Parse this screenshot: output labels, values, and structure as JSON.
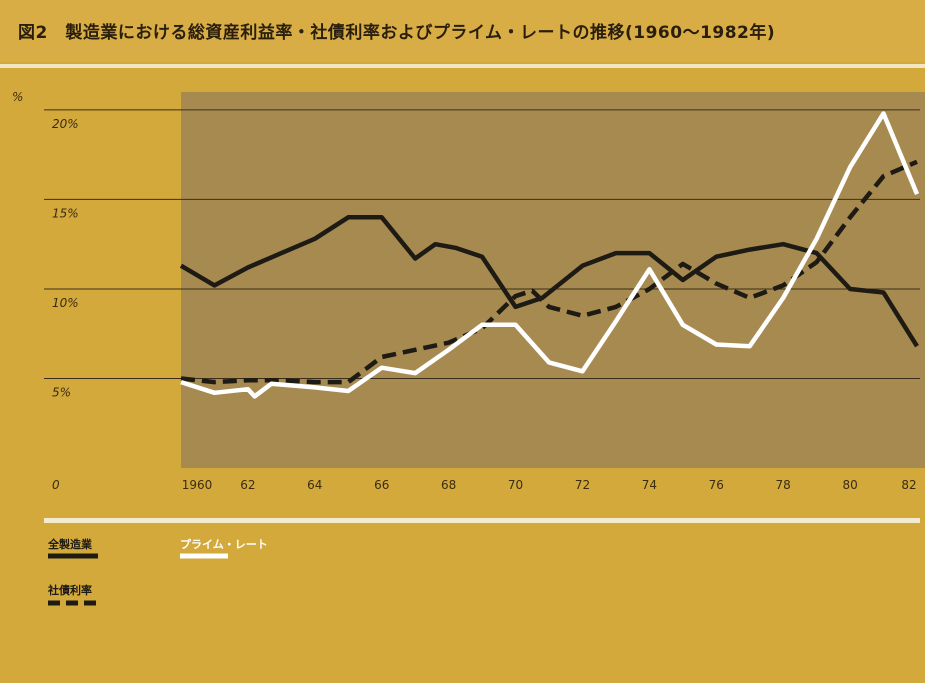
{
  "title": "図2　製造業における総資産利益率・社債利率およびプライム・レートの推移(1960〜1982年)",
  "colors": {
    "background": "#d4a93c",
    "plot_area": "#a78a4f",
    "manufacturing_line": "#1e1a14",
    "bond_line": "#1e1a14",
    "prime_line": "#ffffff",
    "grid": "#3a2e1a"
  },
  "legend": {
    "manufacturing": "全製造業",
    "bond": "社債利率",
    "prime": "プライム・レート"
  },
  "chart_data": {
    "type": "line",
    "title": "図2　製造業における総資産利益率・社債利率およびプライム・レートの推移(1960〜1982年)",
    "y_unit": "%",
    "ylim": [
      0,
      21
    ],
    "yticks": [
      0,
      5,
      10,
      15,
      20
    ],
    "ytick_labels": [
      "0",
      "5%",
      "10%",
      "15%",
      "20%"
    ],
    "xlim": [
      1960,
      1982
    ],
    "xticks": [
      1960,
      1962,
      1964,
      1966,
      1968,
      1970,
      1972,
      1974,
      1976,
      1978,
      1980,
      1982
    ],
    "xtick_labels": [
      "1960",
      "62",
      "64",
      "66",
      "68",
      "70",
      "72",
      "74",
      "76",
      "78",
      "80",
      "82"
    ],
    "grid": true,
    "legend_position": "bottom-left",
    "series": [
      {
        "name": "全製造業",
        "style": "solid-black",
        "x": [
          1960,
          1961,
          1962,
          1963,
          1964,
          1965,
          1966,
          1967,
          1967.6,
          1968.2,
          1969,
          1970,
          1970.8,
          1972,
          1973,
          1974,
          1975,
          1976,
          1977,
          1978,
          1979,
          1980,
          1981,
          1982
        ],
        "values": [
          11.3,
          10.2,
          11.2,
          12.0,
          12.8,
          14.0,
          14.0,
          11.7,
          12.5,
          12.3,
          11.8,
          9.0,
          9.5,
          11.3,
          12.0,
          12.0,
          10.5,
          11.8,
          12.2,
          12.5,
          12.0,
          10.0,
          9.8,
          6.8
        ]
      },
      {
        "name": "社債利率",
        "style": "dashed-black",
        "x": [
          1960,
          1961,
          1962,
          1963,
          1964,
          1965,
          1966,
          1967,
          1968,
          1969,
          1970,
          1970.5,
          1971,
          1972,
          1973,
          1974,
          1975,
          1976,
          1977,
          1978,
          1979,
          1980,
          1981,
          1982
        ],
        "values": [
          5.0,
          4.8,
          4.9,
          4.9,
          4.8,
          4.8,
          6.2,
          6.6,
          7.0,
          7.8,
          9.6,
          9.9,
          9.0,
          8.5,
          9.0,
          10.0,
          11.4,
          10.3,
          9.5,
          10.2,
          11.5,
          14.0,
          16.3,
          17.1
        ]
      },
      {
        "name": "プライム・レート",
        "style": "solid-white",
        "x": [
          1960,
          1961,
          1962,
          1962.2,
          1962.7,
          1964,
          1965,
          1966,
          1967,
          1968,
          1969,
          1970,
          1971,
          1972,
          1973,
          1974,
          1975,
          1976,
          1977,
          1978,
          1979,
          1980,
          1981,
          1982
        ],
        "values": [
          4.8,
          4.2,
          4.4,
          4.0,
          4.7,
          4.5,
          4.3,
          5.6,
          5.3,
          6.6,
          8.0,
          8.0,
          5.9,
          5.4,
          8.2,
          11.1,
          8.0,
          6.9,
          6.8,
          9.5,
          12.8,
          16.8,
          19.8,
          15.3
        ]
      }
    ]
  }
}
